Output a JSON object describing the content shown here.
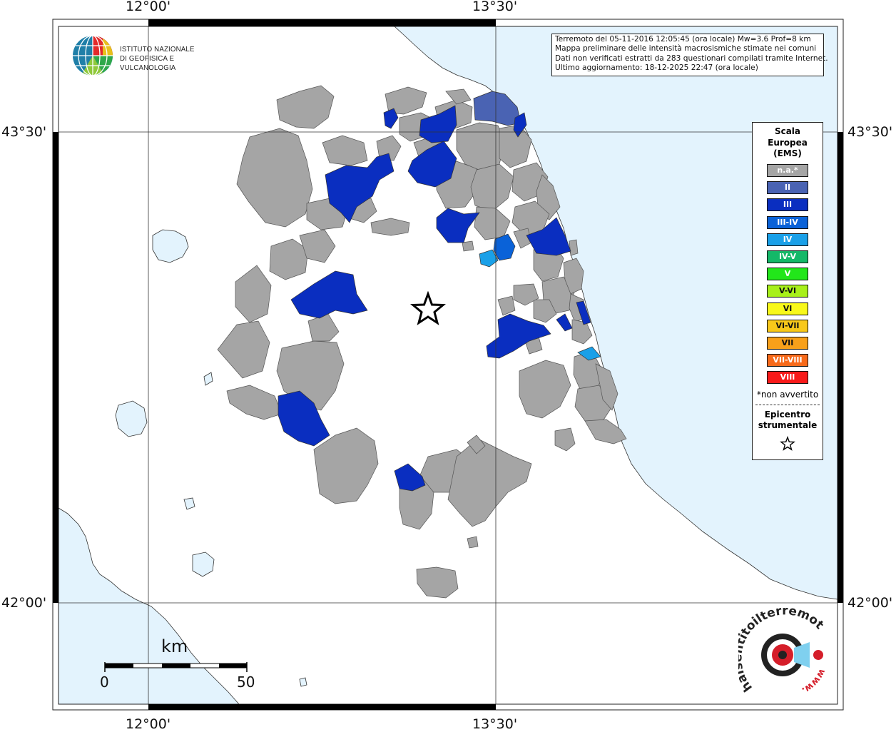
{
  "map": {
    "coords": {
      "top": [
        "12°00'",
        "13°30'"
      ],
      "bottom": [
        "12°00'",
        "13°30'"
      ],
      "left": [
        "43°30'",
        "42°00'"
      ],
      "right": [
        "43°30'",
        "42°00'"
      ]
    },
    "sea_color": "#e3f3fd",
    "land_color": "#ffffff",
    "na_color": "#a5a5a5"
  },
  "info": {
    "line1": "Terremoto del 05-11-2016 12:05:45 (ora locale) Mw=3.6 Prof=8 km",
    "line2": "Mappa preliminare delle intensità macrosismiche stimate nei comuni",
    "line3": "Dati non verificati estratti da 283 questionari compilati tramite Internet.",
    "line4": "Ultimo aggiornamento: 18-12-2025 22:47 (ora locale)"
  },
  "logo": {
    "line1": "ISTITUTO NAZIONALE",
    "line2": "DI GEOFISICA E VULCANOLOGIA"
  },
  "legend": {
    "title1": "Scala",
    "title2": "Europea",
    "title3": "(EMS)",
    "items": [
      {
        "label": "n.a.*",
        "color": "#a5a5a5",
        "text_color": "#ffffff"
      },
      {
        "label": "II",
        "color": "#4a63b3",
        "text_color": "#ffffff"
      },
      {
        "label": "III",
        "color": "#0a2ec0",
        "text_color": "#ffffff"
      },
      {
        "label": "III-IV",
        "color": "#0a62d8",
        "text_color": "#ffffff"
      },
      {
        "label": "IV",
        "color": "#1aa0e8",
        "text_color": "#ffffff"
      },
      {
        "label": "IV-V",
        "color": "#14b868",
        "text_color": "#ffffff"
      },
      {
        "label": "V",
        "color": "#22e61a",
        "text_color": "#ffffff"
      },
      {
        "label": "V-VI",
        "color": "#a8f01a",
        "text_color": "#111111"
      },
      {
        "label": "VI",
        "color": "#f8f81a",
        "text_color": "#111111"
      },
      {
        "label": "VI-VII",
        "color": "#f8c81a",
        "text_color": "#111111"
      },
      {
        "label": "VII",
        "color": "#f8a01a",
        "text_color": "#111111"
      },
      {
        "label": "VII-VIII",
        "color": "#f86a1a",
        "text_color": "#ffffff"
      },
      {
        "label": "VIII",
        "color": "#f81a1a",
        "text_color": "#ffffff"
      }
    ],
    "note": "*non avvertito",
    "epicenter1": "Epicentro",
    "epicenter2": "strumentale"
  },
  "scale": {
    "unit": "km",
    "start": "0",
    "end": "50"
  },
  "haisentito": {
    "text": "haisentitoilterremoto.it",
    "www": "www."
  }
}
